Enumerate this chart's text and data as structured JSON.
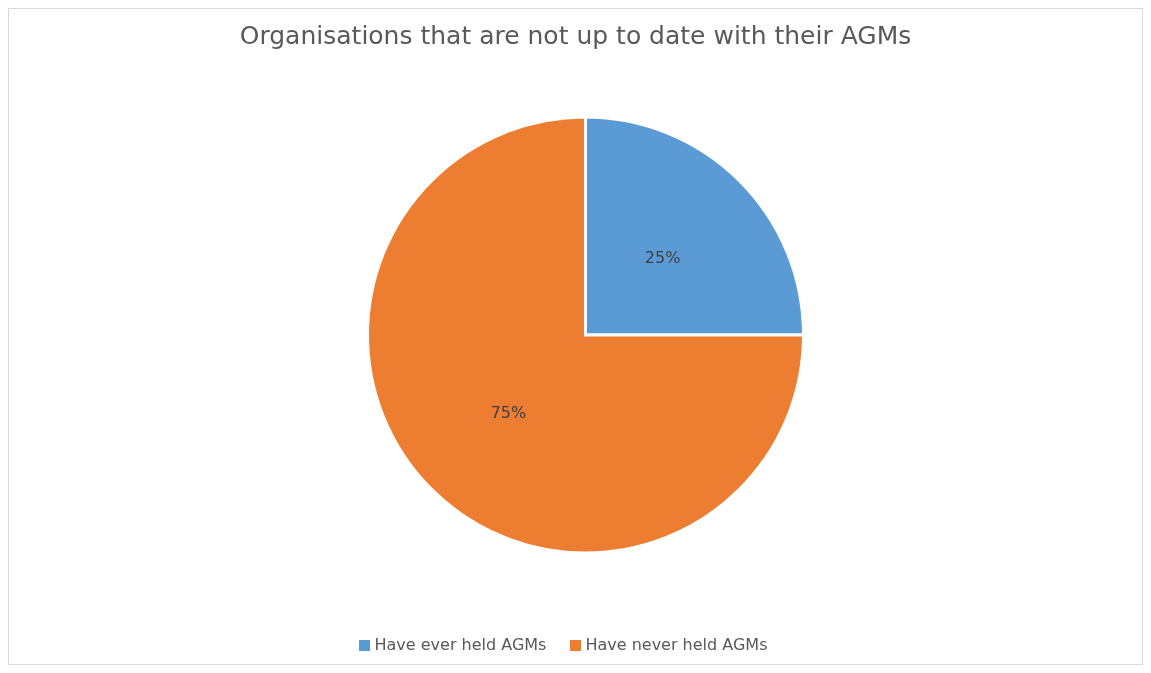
{
  "chart_data": {
    "type": "pie",
    "title": "Organisations that are not up to date with their AGMs",
    "categories": [
      "Have ever held AGMs",
      "Have never held AGMs"
    ],
    "values": [
      25,
      75
    ],
    "colors": [
      "#5b9bd5",
      "#ed7d31"
    ],
    "value_labels": [
      "25%",
      "75%"
    ],
    "legend": "bottom"
  }
}
